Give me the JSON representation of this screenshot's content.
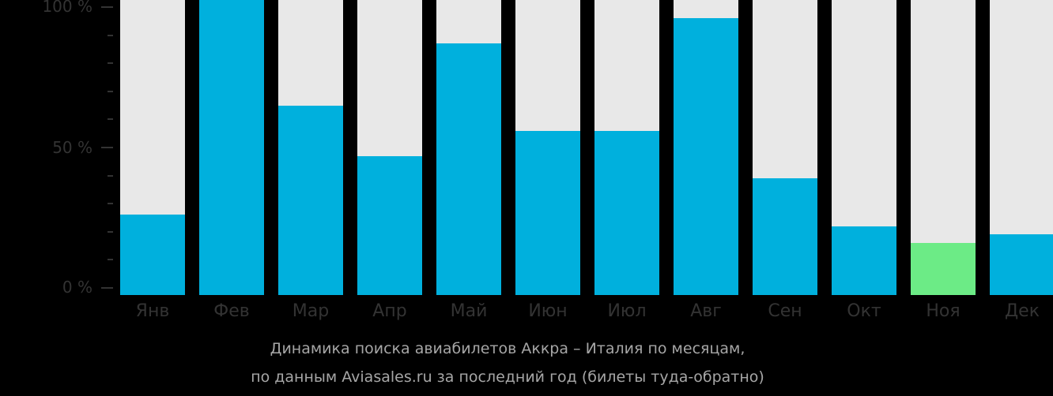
{
  "chart_data": {
    "type": "bar",
    "title": "Динамика поиска авиабилетов Аккра – Италия по месяцам,",
    "subtitle": "по данным Aviasales.ru за последний год (билеты туда-обратно)",
    "xlabel": "",
    "ylabel": "",
    "ylim": [
      0,
      100
    ],
    "yticks": [
      "0 %",
      "50 %",
      "100 %"
    ],
    "grid": false,
    "categories": [
      "Янв",
      "Фев",
      "Мар",
      "Апр",
      "Май",
      "Июн",
      "Июл",
      "Авг",
      "Сен",
      "Окт",
      "Ноя",
      "Дек"
    ],
    "values": [
      26,
      100,
      65,
      47,
      87,
      56,
      56,
      96,
      39,
      22,
      16,
      19
    ],
    "highlight_index": 10,
    "colors": {
      "bar": "#00b0dd",
      "highlight": "#6ceb86",
      "track": "#e8e8e8",
      "background": "#000000"
    }
  },
  "caption": {
    "line1": "Динамика поиска авиабилетов Аккра – Италия по месяцам,",
    "line2": "по данным Aviasales.ru за последний год (билеты туда-обратно)"
  }
}
